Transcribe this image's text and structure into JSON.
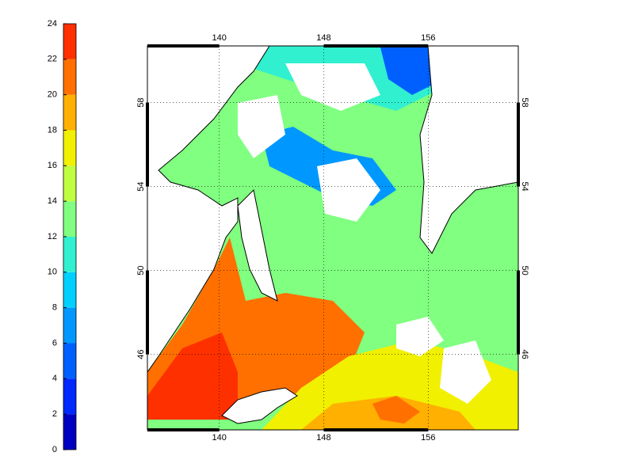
{
  "colorbar": {
    "ticks": [
      0,
      2,
      4,
      6,
      8,
      10,
      12,
      14,
      16,
      18,
      20,
      22,
      24
    ],
    "colors": [
      "#0000c0",
      "#0028ff",
      "#0060ff",
      "#0098ff",
      "#00d0ff",
      "#30f0d0",
      "#80ff80",
      "#c0ff40",
      "#f0f000",
      "#ffb000",
      "#ff7000",
      "#ff3000"
    ]
  },
  "map": {
    "lon_lim": [
      134.5,
      162.9
    ],
    "lat_lim": [
      42.4,
      60.7
    ],
    "lon_ticks": [
      140,
      148,
      156
    ],
    "lat_ticks": [
      46,
      50,
      54,
      58
    ],
    "grid": true
  }
}
